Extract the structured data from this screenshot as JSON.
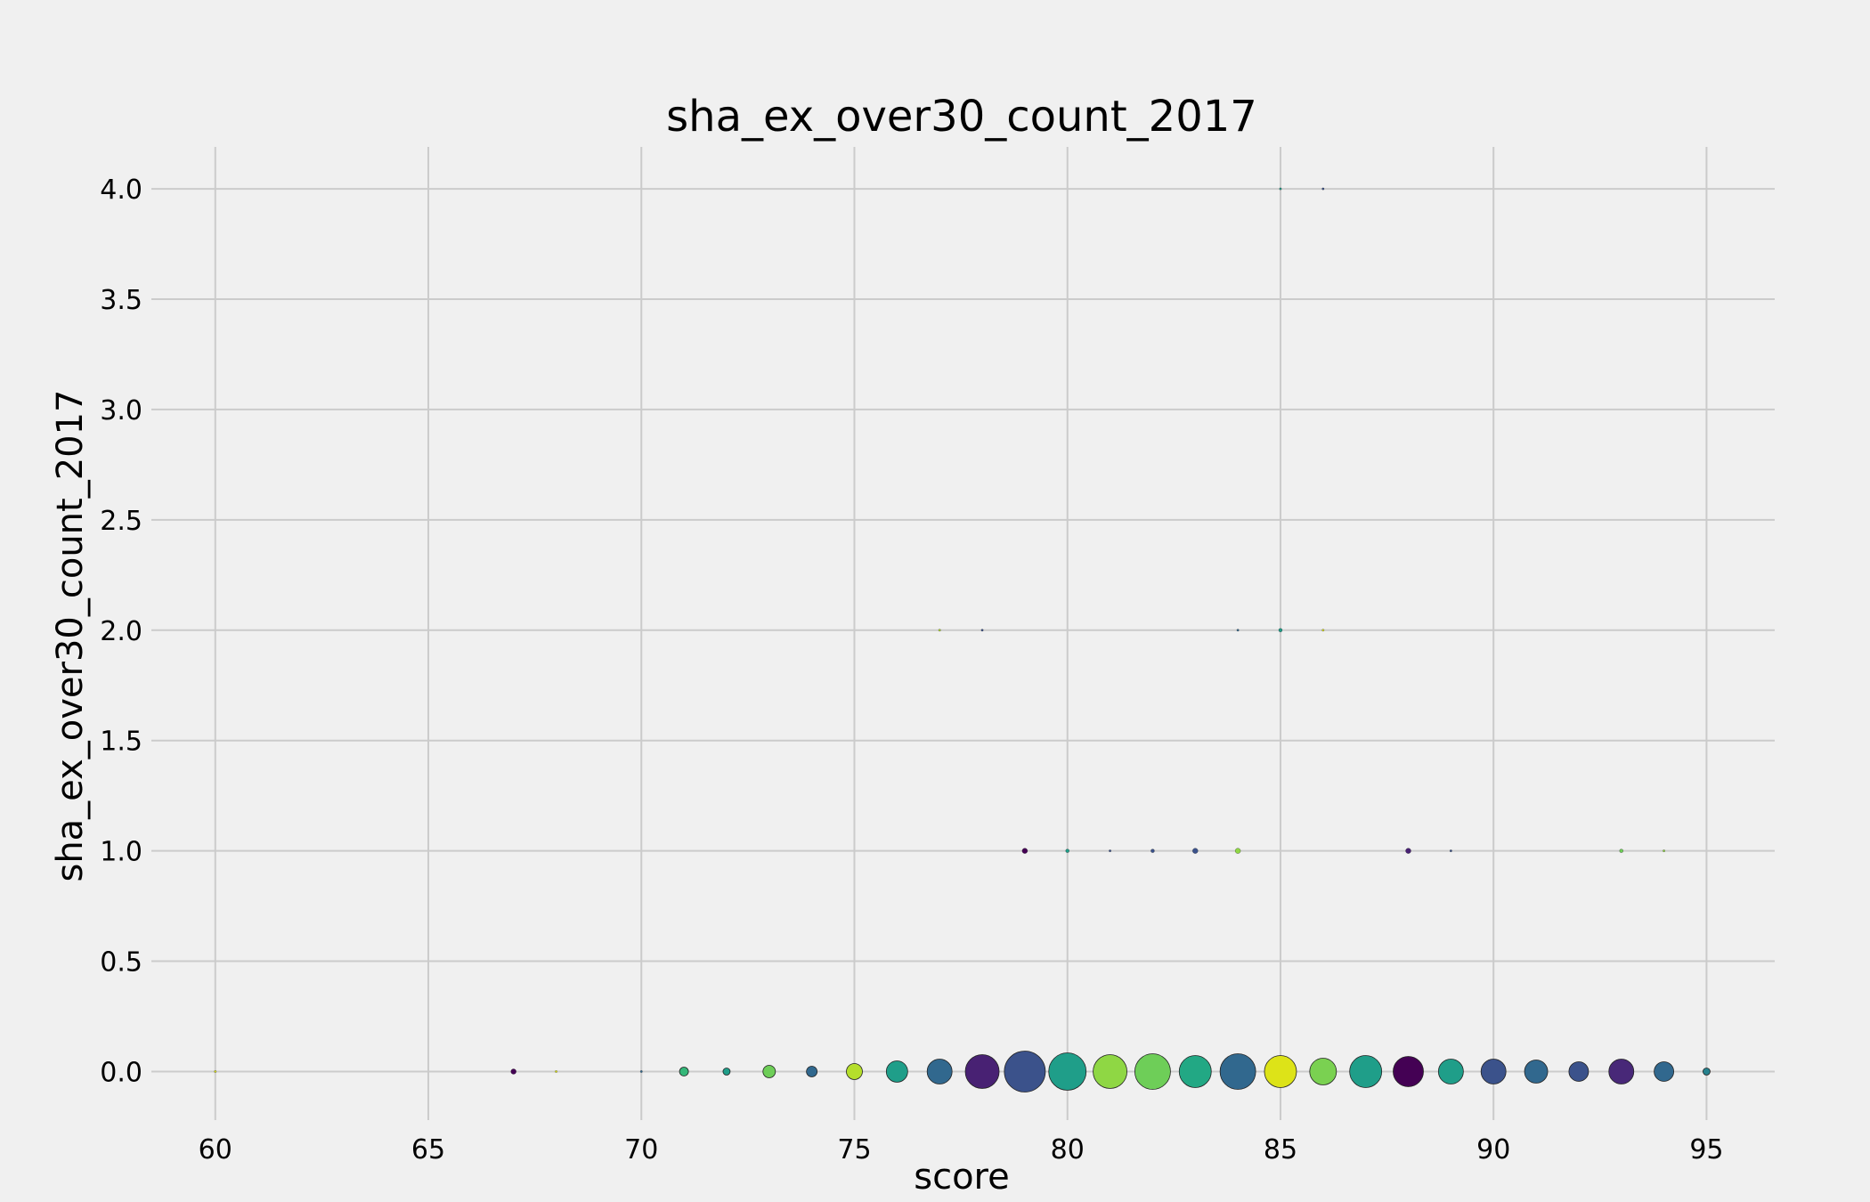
{
  "chart_data": {
    "type": "scatter",
    "title": "sha_ex_over30_count_2017",
    "xlabel": "score",
    "ylabel": "sha_ex_over30_count_2017",
    "xlim": [
      58.5,
      96.6
    ],
    "ylim": [
      -0.22,
      4.19
    ],
    "grid": true,
    "x_ticks": [
      60,
      65,
      70,
      75,
      80,
      85,
      90,
      95
    ],
    "x_tick_labels": [
      "60",
      "65",
      "70",
      "75",
      "80",
      "85",
      "90",
      "95"
    ],
    "y_ticks": [
      0.0,
      0.5,
      1.0,
      1.5,
      2.0,
      2.5,
      3.0,
      3.5,
      4.0
    ],
    "y_tick_labels": [
      "0.0",
      "0.5",
      "1.0",
      "1.5",
      "2.0",
      "2.5",
      "3.0",
      "3.5",
      "4.0"
    ],
    "colormap": "viridis",
    "points": [
      {
        "x": 60,
        "y": 0,
        "size": 1,
        "color": "#dde318"
      },
      {
        "x": 67,
        "y": 0,
        "size": 3,
        "color": "#440154"
      },
      {
        "x": 68,
        "y": 0,
        "size": 1,
        "color": "#dde318"
      },
      {
        "x": 70,
        "y": 0,
        "size": 1,
        "color": "#31688e"
      },
      {
        "x": 71,
        "y": 0,
        "size": 5,
        "color": "#35b779"
      },
      {
        "x": 72,
        "y": 0,
        "size": 4,
        "color": "#1f9e89"
      },
      {
        "x": 73,
        "y": 0,
        "size": 7,
        "color": "#6ece58"
      },
      {
        "x": 74,
        "y": 0,
        "size": 6,
        "color": "#31688e"
      },
      {
        "x": 75,
        "y": 0,
        "size": 9,
        "color": "#b5de2b"
      },
      {
        "x": 76,
        "y": 0,
        "size": 12,
        "color": "#1f9e89"
      },
      {
        "x": 77,
        "y": 0,
        "size": 14,
        "color": "#31688e"
      },
      {
        "x": 78,
        "y": 0,
        "size": 19,
        "color": "#482173"
      },
      {
        "x": 79,
        "y": 0,
        "size": 23,
        "color": "#3b528b"
      },
      {
        "x": 80,
        "y": 0,
        "size": 21,
        "color": "#1f9e89"
      },
      {
        "x": 81,
        "y": 0,
        "size": 19,
        "color": "#8fd744"
      },
      {
        "x": 82,
        "y": 0,
        "size": 20,
        "color": "#6ece58"
      },
      {
        "x": 83,
        "y": 0,
        "size": 18,
        "color": "#22a884"
      },
      {
        "x": 84,
        "y": 0,
        "size": 20,
        "color": "#31688e"
      },
      {
        "x": 85,
        "y": 0,
        "size": 18,
        "color": "#dde318"
      },
      {
        "x": 86,
        "y": 0,
        "size": 15,
        "color": "#7ad151"
      },
      {
        "x": 87,
        "y": 0,
        "size": 18,
        "color": "#1f9e89"
      },
      {
        "x": 88,
        "y": 0,
        "size": 17,
        "color": "#440154"
      },
      {
        "x": 89,
        "y": 0,
        "size": 14,
        "color": "#1f9e89"
      },
      {
        "x": 90,
        "y": 0,
        "size": 14,
        "color": "#3b528b"
      },
      {
        "x": 91,
        "y": 0,
        "size": 13,
        "color": "#31688e"
      },
      {
        "x": 92,
        "y": 0,
        "size": 11,
        "color": "#3b528b"
      },
      {
        "x": 93,
        "y": 0,
        "size": 14,
        "color": "#482878"
      },
      {
        "x": 94,
        "y": 0,
        "size": 11,
        "color": "#31688e"
      },
      {
        "x": 95,
        "y": 0,
        "size": 4,
        "color": "#26828e"
      },
      {
        "x": 79,
        "y": 1,
        "size": 3,
        "color": "#440154"
      },
      {
        "x": 80,
        "y": 1,
        "size": 2,
        "color": "#1f9e89"
      },
      {
        "x": 81,
        "y": 1,
        "size": 1,
        "color": "#3b528b"
      },
      {
        "x": 82,
        "y": 1,
        "size": 2,
        "color": "#3b528b"
      },
      {
        "x": 83,
        "y": 1,
        "size": 3,
        "color": "#3b528b"
      },
      {
        "x": 84,
        "y": 1,
        "size": 3,
        "color": "#8fd744"
      },
      {
        "x": 88,
        "y": 1,
        "size": 3,
        "color": "#482173"
      },
      {
        "x": 89,
        "y": 1,
        "size": 1,
        "color": "#3b528b"
      },
      {
        "x": 93,
        "y": 1,
        "size": 2,
        "color": "#6ece58"
      },
      {
        "x": 94,
        "y": 1,
        "size": 1,
        "color": "#8fd744"
      },
      {
        "x": 77,
        "y": 2,
        "size": 1,
        "color": "#b5de2b"
      },
      {
        "x": 78,
        "y": 2,
        "size": 1,
        "color": "#3b528b"
      },
      {
        "x": 84,
        "y": 2,
        "size": 1,
        "color": "#31688e"
      },
      {
        "x": 85,
        "y": 2,
        "size": 2,
        "color": "#1f9e89"
      },
      {
        "x": 86,
        "y": 2,
        "size": 1,
        "color": "#dde318"
      },
      {
        "x": 85,
        "y": 4,
        "size": 1,
        "color": "#1f9e89"
      },
      {
        "x": 86,
        "y": 4,
        "size": 1,
        "color": "#3b528b"
      }
    ]
  }
}
